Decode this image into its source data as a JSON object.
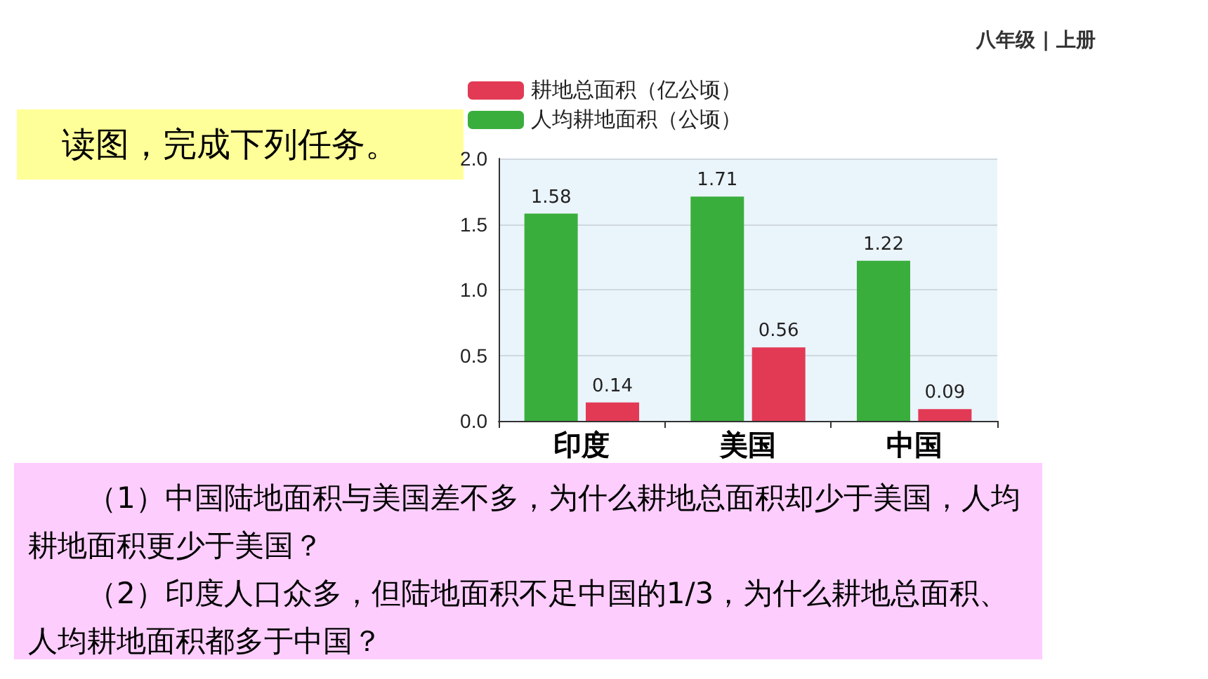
{
  "chart_data": {
    "type": "bar",
    "title": "读图，完成下列任务。",
    "categories": [
      "印度",
      "美国",
      "中国"
    ],
    "series": [
      {
        "name": "人均耕地面积（公顷）",
        "color": "#3aae3c",
        "values": [
          1.58,
          1.71,
          1.22
        ]
      },
      {
        "name": "耕地总面积（亿公顷）",
        "color": "#e23a55",
        "values": [
          0.14,
          0.56,
          0.09
        ]
      }
    ],
    "ylim": [
      0,
      2
    ],
    "yticks": [
      {
        "value": 0,
        "label": "0.0"
      },
      0.5,
      {
        "value": 1,
        "label": "1.0"
      },
      1.5,
      {
        "value": 2,
        "label": "2.0"
      }
    ],
    "grid": "y",
    "legend": "top left",
    "data_labels": true,
    "annotations": [
      "八年级 | 上册",
      "（1）中国陆地面积与美国差不多，为什么耕地总面积却少于美国，人均耕地面积更少于美国？",
      "（2）印度人口众多，但陆地面积不足中国的1/3，为什么耕地总面积、人均耕地面积都多于中国？"
    ]
  }
}
